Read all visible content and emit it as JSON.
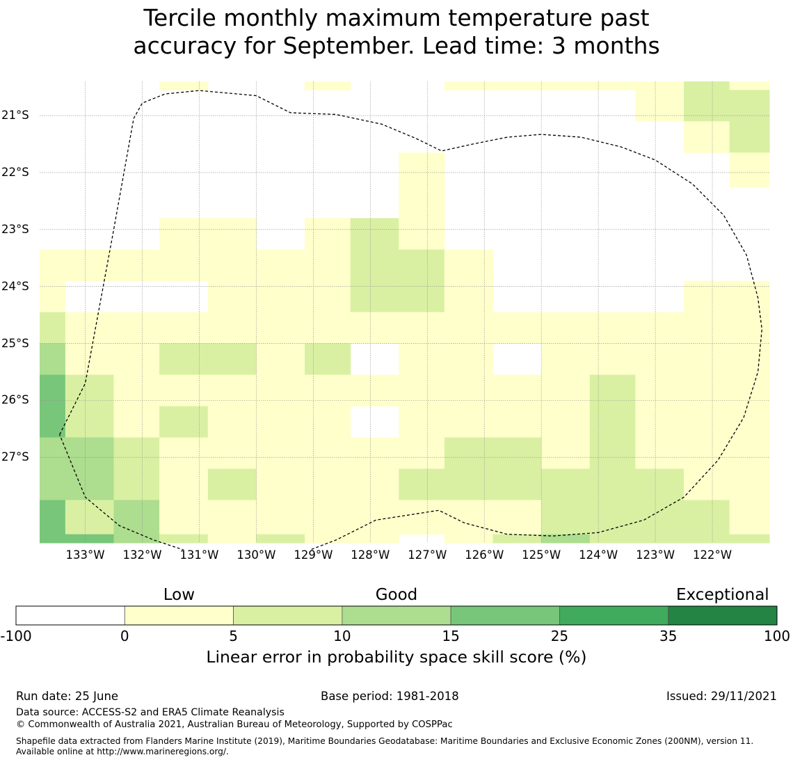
{
  "title": {
    "line1": "Tercile monthly maximum temperature past",
    "line2": "accuracy for September. Lead time: 3 months"
  },
  "map": {
    "lon_range": [
      -133.8,
      -121.0
    ],
    "lat_range": [
      -28.5,
      -20.4
    ],
    "lat_ticks": [
      {
        "value": -21,
        "label": "21°S"
      },
      {
        "value": -22,
        "label": "22°S"
      },
      {
        "value": -23,
        "label": "23°S"
      },
      {
        "value": -24,
        "label": "24°S"
      },
      {
        "value": -25,
        "label": "25°S"
      },
      {
        "value": -26,
        "label": "26°S"
      },
      {
        "value": -27,
        "label": "27°S"
      }
    ],
    "lon_ticks": [
      {
        "value": -133,
        "label": "133°W"
      },
      {
        "value": -132,
        "label": "132°W"
      },
      {
        "value": -131,
        "label": "131°W"
      },
      {
        "value": -130,
        "label": "130°W"
      },
      {
        "value": -129,
        "label": "129°W"
      },
      {
        "value": -128,
        "label": "128°W"
      },
      {
        "value": -127,
        "label": "127°W"
      },
      {
        "value": -126,
        "label": "126°W"
      },
      {
        "value": -125,
        "label": "125°W"
      },
      {
        "value": -124,
        "label": "124°W"
      },
      {
        "value": -123,
        "label": "123°W"
      },
      {
        "value": -122,
        "label": "122°W"
      }
    ],
    "eez_boundary": [
      [
        -133.45,
        -26.6
      ],
      [
        -133.0,
        -25.7
      ],
      [
        -132.5,
        -23.0
      ],
      [
        -132.15,
        -21.05
      ],
      [
        -132.0,
        -20.78
      ],
      [
        -131.6,
        -20.62
      ],
      [
        -131.0,
        -20.56
      ],
      [
        -130.0,
        -20.65
      ],
      [
        -129.4,
        -20.95
      ],
      [
        -128.6,
        -20.98
      ],
      [
        -127.8,
        -21.15
      ],
      [
        -127.2,
        -21.4
      ],
      [
        -126.75,
        -21.62
      ],
      [
        -126.2,
        -21.5
      ],
      [
        -125.6,
        -21.38
      ],
      [
        -125.0,
        -21.33
      ],
      [
        -124.3,
        -21.38
      ],
      [
        -123.6,
        -21.55
      ],
      [
        -123.0,
        -21.78
      ],
      [
        -122.35,
        -22.2
      ],
      [
        -121.8,
        -22.75
      ],
      [
        -121.4,
        -23.45
      ],
      [
        -121.2,
        -24.2
      ],
      [
        -121.13,
        -24.75
      ],
      [
        -121.2,
        -25.5
      ],
      [
        -121.45,
        -26.3
      ],
      [
        -121.9,
        -27.05
      ],
      [
        -122.5,
        -27.7
      ],
      [
        -123.2,
        -28.1
      ],
      [
        -124.0,
        -28.32
      ],
      [
        -124.8,
        -28.38
      ],
      [
        -125.6,
        -28.35
      ],
      [
        -126.35,
        -28.15
      ],
      [
        -126.8,
        -27.93
      ],
      [
        -127.25,
        -28.0
      ],
      [
        -127.9,
        -28.1
      ],
      [
        -128.6,
        -28.45
      ],
      [
        -129.2,
        -28.68
      ],
      [
        -129.8,
        -28.77
      ],
      [
        -130.5,
        -28.75
      ],
      [
        -131.2,
        -28.65
      ],
      [
        -131.8,
        -28.45
      ],
      [
        -132.4,
        -28.2
      ],
      [
        -133.0,
        -27.7
      ],
      [
        -133.45,
        -26.6
      ]
    ],
    "cells": {
      "x_edges": [
        -133.8,
        -133.35,
        -132.5,
        -131.7,
        -130.85,
        -130.0,
        -129.15,
        -128.35,
        -127.5,
        -126.7,
        -125.85,
        -125.0,
        -124.15,
        -123.35,
        -122.5,
        -121.7,
        -121.0
      ],
      "rows": [
        {
          "lat": [
            -20.55,
            -20.4
          ],
          "v": [
            -1,
            -1,
            -1,
            3,
            -1,
            -1,
            3,
            -1,
            -1,
            3,
            3,
            3,
            3,
            3,
            7,
            3
          ]
        },
        {
          "lat": [
            -21.1,
            -20.55
          ],
          "v": [
            -1,
            -1,
            -1,
            -1,
            -1,
            -1,
            -1,
            -1,
            -1,
            -1,
            -1,
            -1,
            -1,
            3,
            7,
            7
          ]
        },
        {
          "lat": [
            -21.65,
            -21.1
          ],
          "v": [
            -1,
            -1,
            -1,
            -1,
            -1,
            -1,
            -1,
            -1,
            -1,
            -1,
            -1,
            -1,
            -1,
            -1,
            3,
            7
          ]
        },
        {
          "lat": [
            -22.25,
            -21.65
          ],
          "v": [
            -1,
            -1,
            -1,
            -1,
            -1,
            -1,
            -1,
            -1,
            3,
            -1,
            -1,
            -1,
            -1,
            -1,
            -1,
            3
          ]
        },
        {
          "lat": [
            -22.8,
            -22.25
          ],
          "v": [
            -1,
            -1,
            -1,
            -1,
            -1,
            -1,
            -1,
            -1,
            3,
            -1,
            -1,
            -1,
            -1,
            -1,
            -1,
            -1
          ]
        },
        {
          "lat": [
            -23.35,
            -22.8
          ],
          "v": [
            -1,
            -1,
            -1,
            3,
            3,
            -1,
            3,
            7,
            3,
            -1,
            -1,
            -1,
            -1,
            -1,
            -1,
            -1
          ]
        },
        {
          "lat": [
            -23.9,
            -23.35
          ],
          "v": [
            3,
            3,
            3,
            3,
            3,
            3,
            3,
            7,
            7,
            3,
            -1,
            -1,
            -1,
            -1,
            -1,
            -1
          ]
        },
        {
          "lat": [
            -24.45,
            -23.9
          ],
          "v": [
            3,
            -1,
            -1,
            -1,
            3,
            3,
            3,
            7,
            7,
            3,
            -1,
            -1,
            -1,
            -1,
            3,
            3
          ]
        },
        {
          "lat": [
            -25.0,
            -24.45
          ],
          "v": [
            7,
            3,
            3,
            3,
            3,
            3,
            3,
            3,
            3,
            3,
            3,
            3,
            3,
            3,
            3,
            3
          ]
        },
        {
          "lat": [
            -25.55,
            -25.0
          ],
          "v": [
            12,
            3,
            3,
            7,
            7,
            3,
            7,
            -1,
            3,
            3,
            -1,
            3,
            3,
            3,
            3,
            3
          ]
        },
        {
          "lat": [
            -26.1,
            -25.55
          ],
          "v": [
            20,
            7,
            3,
            3,
            3,
            3,
            3,
            3,
            3,
            3,
            3,
            3,
            7,
            3,
            3,
            3
          ]
        },
        {
          "lat": [
            -26.65,
            -26.1
          ],
          "v": [
            20,
            7,
            3,
            7,
            3,
            3,
            3,
            -1,
            3,
            3,
            3,
            3,
            7,
            3,
            3,
            3
          ]
        },
        {
          "lat": [
            -27.2,
            -26.65
          ],
          "v": [
            12,
            12,
            7,
            3,
            3,
            3,
            3,
            3,
            3,
            7,
            7,
            3,
            7,
            3,
            3,
            3
          ]
        },
        {
          "lat": [
            -27.75,
            -27.2
          ],
          "v": [
            12,
            12,
            7,
            3,
            7,
            3,
            3,
            3,
            7,
            7,
            7,
            7,
            7,
            7,
            3,
            3
          ]
        },
        {
          "lat": [
            -28.35,
            -27.75
          ],
          "v": [
            20,
            7,
            12,
            3,
            3,
            3,
            3,
            3,
            3,
            3,
            3,
            7,
            7,
            7,
            7,
            3
          ]
        },
        {
          "lat": [
            -28.5,
            -28.35
          ],
          "v": [
            20,
            20,
            12,
            7,
            3,
            7,
            3,
            3,
            -1,
            3,
            7,
            12,
            7,
            7,
            7,
            7
          ]
        }
      ]
    }
  },
  "colorbar": {
    "categories": [
      {
        "label": "Low",
        "at_index": 1
      },
      {
        "label": "Good",
        "at_index": 3
      },
      {
        "label": "Exceptional",
        "at_index": 6
      }
    ],
    "ticks": [
      "-100",
      "0",
      "5",
      "10",
      "15",
      "25",
      "35",
      "100"
    ],
    "bins": [
      {
        "from": -100,
        "to": 0,
        "color": "#ffffff"
      },
      {
        "from": 0,
        "to": 5,
        "color": "#ffffcc"
      },
      {
        "from": 5,
        "to": 10,
        "color": "#d9f0a3"
      },
      {
        "from": 10,
        "to": 15,
        "color": "#addd8e"
      },
      {
        "from": 15,
        "to": 25,
        "color": "#78c679"
      },
      {
        "from": 25,
        "to": 35,
        "color": "#41ab5d"
      },
      {
        "from": 35,
        "to": 100,
        "color": "#238443"
      }
    ],
    "title": "Linear error in probability space skill score (%)"
  },
  "footer": {
    "run_date": "Run date: 25 June",
    "base_period": "Base period: 1981-2018",
    "issued": "Issued: 29/11/2021",
    "data_source": "Data source: ACCESS-S2 and ERA5 Climate Reanalysis",
    "copyright": "© Commonwealth of Australia 2021, Australian Bureau of Meteorology, Supported by COSPPac",
    "shapefile": "Shapefile data extracted from Flanders Marine Institute (2019), Maritime Boundaries Geodatabase: Maritime Boundaries and Exclusive Economic Zones (200NM), version 11. Available online at http://www.marineregions.org/."
  }
}
